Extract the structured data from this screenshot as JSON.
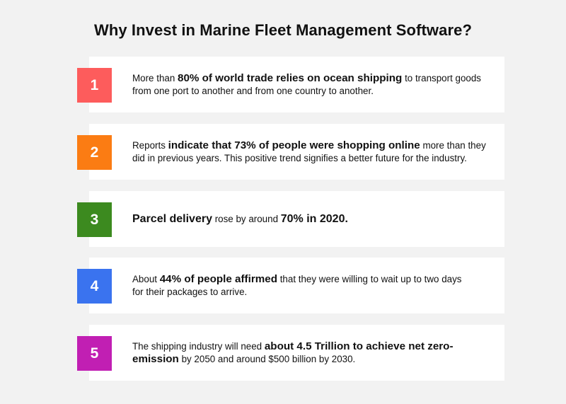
{
  "title": "Why Invest in Marine Fleet Management Software?",
  "colors": {
    "item1": "#fd5c5c",
    "item2": "#fb7c13",
    "item3": "#3c8a1f",
    "item4": "#3a73ef",
    "item5": "#c11fb3"
  },
  "items": [
    {
      "number": "1",
      "pre": "More than ",
      "bold": "80% of world trade relies on ocean shipping",
      "post": " to transport goods from one port to another and from one country to another."
    },
    {
      "number": "2",
      "pre": "Reports ",
      "bold": "indicate that 73% of people were shopping online",
      "post": " more than they did in previous years. This positive trend signifies a better future for the industry."
    },
    {
      "number": "3",
      "bold": "Parcel delivery",
      "mid": " rose by around ",
      "bold2": "70% in 2020."
    },
    {
      "number": "4",
      "pre": "About ",
      "bold": "44% of people affirmed",
      "post": " that they were willing to wait up to two days for their packages to arrive."
    },
    {
      "number": "5",
      "pre": "The shipping industry will need ",
      "bold": "about 4.5 Trillion to achieve net zero-emission",
      "post": " by 2050 and around $500 billion by 2030."
    }
  ]
}
